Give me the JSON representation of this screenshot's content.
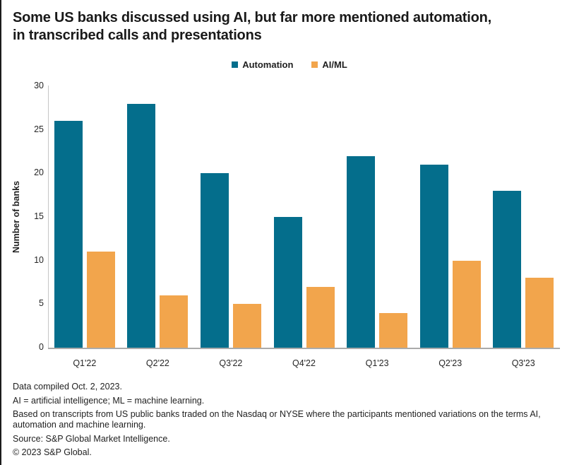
{
  "title": {
    "line1": "Some US banks discussed using AI, but far more mentioned automation,",
    "line2": "in transcribed calls and presentations"
  },
  "legend": [
    {
      "label": "Automation",
      "color": "#046e8c"
    },
    {
      "label": "AI/ML",
      "color": "#f2a54c"
    }
  ],
  "chart_data": {
    "type": "bar",
    "categories": [
      "Q1'22",
      "Q2'22",
      "Q3'22",
      "Q4'22",
      "Q1'23",
      "Q2'23",
      "Q3'23"
    ],
    "series": [
      {
        "name": "Automation",
        "color": "#046e8c",
        "values": [
          26,
          28,
          20,
          15,
          22,
          21,
          18
        ]
      },
      {
        "name": "AI/ML",
        "color": "#f2a54c",
        "values": [
          11,
          6,
          5,
          7,
          4,
          10,
          8
        ]
      }
    ],
    "title": "Some US banks discussed using AI, but far more mentioned automation, in transcribed calls and presentations",
    "xlabel": "",
    "ylabel": "Number of banks",
    "ylim": [
      0,
      30
    ],
    "yticks": [
      0,
      5,
      10,
      15,
      20,
      25,
      30
    ],
    "grid": false,
    "legend_position": "top-center"
  },
  "footnotes": [
    "Data compiled Oct. 2, 2023.",
    "AI = artificial intelligence; ML = machine learning.",
    "Based on transcripts from US public banks traded on the Nasdaq or NYSE where the participants mentioned variations on the terms AI, automation and machine learning.",
    "Source: S&P Global Market Intelligence.",
    "© 2023 S&P Global."
  ]
}
